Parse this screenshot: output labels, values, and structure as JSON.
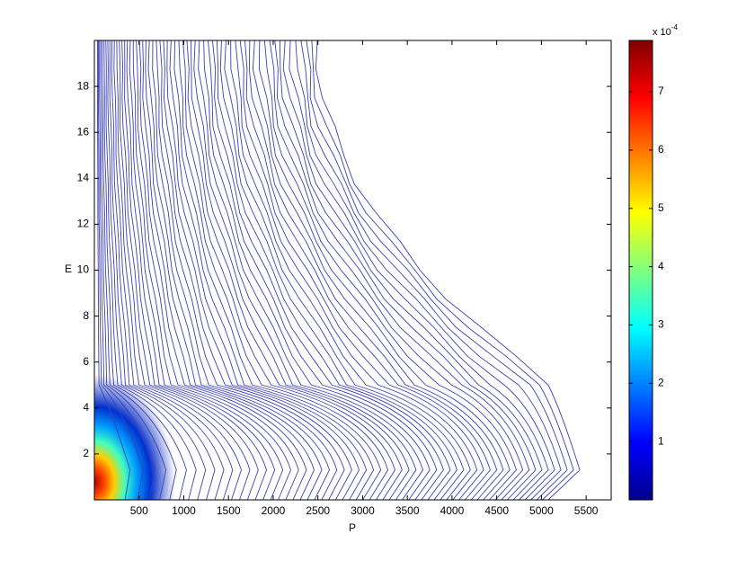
{
  "chart_data": {
    "type": "contour",
    "x_label": "P",
    "y_label": "E",
    "xlim": [
      0,
      5780
    ],
    "xticks": [
      500,
      1000,
      1500,
      2000,
      2500,
      3000,
      3500,
      4000,
      4500,
      5000,
      5500
    ],
    "ylim": [
      0,
      20
    ],
    "yticks": [
      2,
      4,
      6,
      8,
      10,
      12,
      14,
      16,
      18
    ],
    "line_color": "#3b3fb5",
    "colorbar": {
      "clim": [
        0,
        7.88
      ],
      "ticks": [
        1,
        2,
        3,
        4,
        5,
        6,
        7
      ],
      "scale_label": "x 10",
      "scale_exponent": "-4",
      "colormap": "jet"
    }
  }
}
